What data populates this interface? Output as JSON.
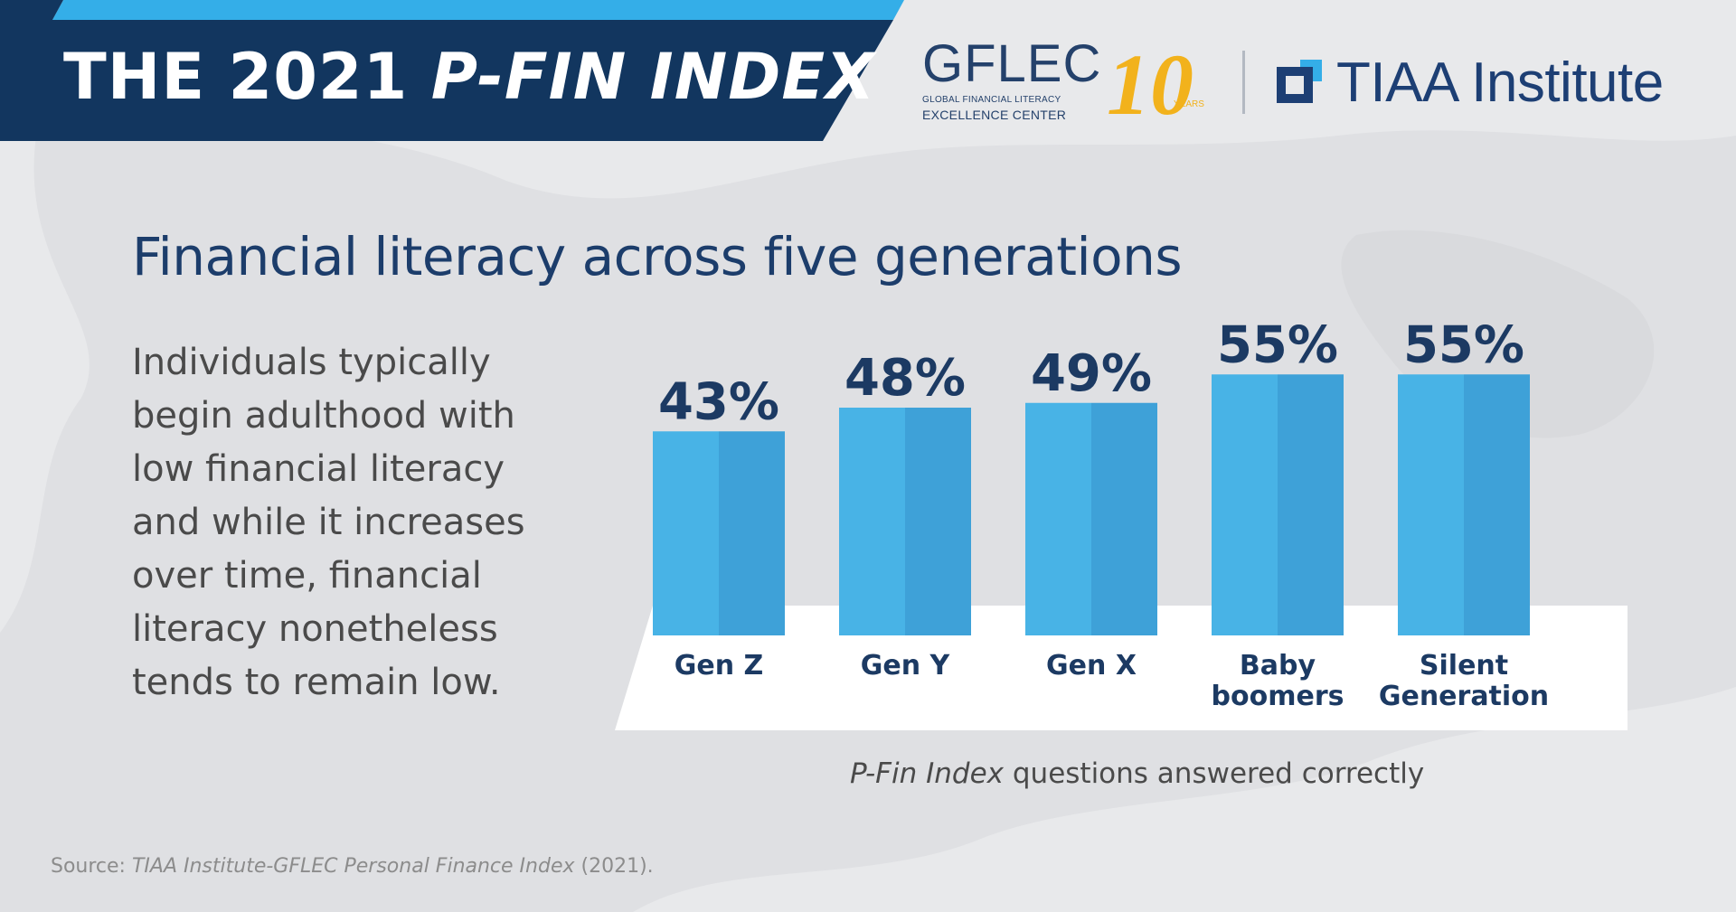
{
  "header": {
    "title_prefix": "THE 2021 ",
    "title_emphasis": "P-FIN INDEX",
    "colors": {
      "banner_dark": "#12365f",
      "banner_light": "#34aee8"
    }
  },
  "logos": {
    "gflec": {
      "wordmark": "GFLEC",
      "line1": "GLOBAL FINANCIAL LITERACY",
      "line2": "EXCELLENCE CENTER",
      "anniversary_number": "10",
      "anniversary_word": "YEARS",
      "anniversary_color": "#f2b21c"
    },
    "tiaa": {
      "name": "TIAA Institute",
      "color": "#1d3f74"
    }
  },
  "main": {
    "title": "Financial literacy across five generations",
    "description": "Individuals typically begin adulthood with low financial literacy and while it increases over time, financial literacy nonetheless tends to remain low."
  },
  "chart_data": {
    "type": "bar",
    "title": "Financial literacy across five generations",
    "categories": [
      "Gen Z",
      "Gen Y",
      "Gen X",
      "Baby boomers",
      "Silent Generation"
    ],
    "values": [
      43,
      48,
      49,
      55,
      55
    ],
    "data_labels": [
      "43%",
      "48%",
      "49%",
      "55%",
      "55%"
    ],
    "unit": "%",
    "xlabel_prefix": "P-Fin Index",
    "xlabel_suffix": " questions answered correctly",
    "grid": false,
    "legend": "none",
    "colors": {
      "bar_left": "#48b3e6",
      "bar_right": "#3ea1d8",
      "base": "#ffffff"
    }
  },
  "footer": {
    "source_prefix": "Source: ",
    "source_title": "TIAA Institute-GFLEC Personal Finance Index",
    "source_suffix": " (2021)."
  }
}
